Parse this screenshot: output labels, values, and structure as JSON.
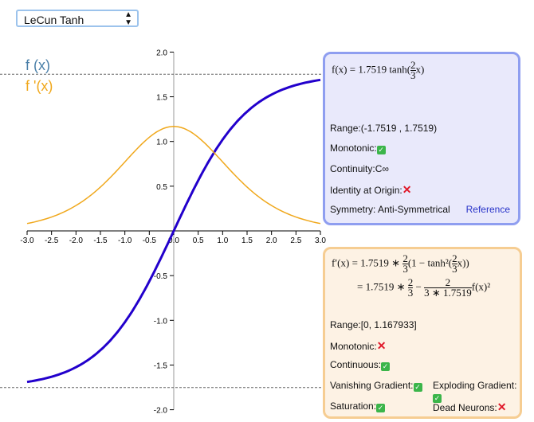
{
  "dropdown": {
    "selected": "LeCun Tanh"
  },
  "legend": {
    "f": "f (x)",
    "df": "f '(x)"
  },
  "colors": {
    "f": "#2200cc",
    "df": "#f0a81c",
    "legend_f": "#4a7fa8"
  },
  "chart_data": {
    "type": "line",
    "xlim": [
      -3,
      3
    ],
    "ylim": [
      -2,
      2
    ],
    "xticks": [
      "-3.0",
      "-2.5",
      "-2.0",
      "-1.5",
      "-1.0",
      "-0.5",
      "0.0",
      "0.5",
      "1.0",
      "1.5",
      "2.0",
      "2.5",
      "3.0"
    ],
    "yticks": [
      "2.0",
      "1.5",
      "1.0",
      "0.5",
      "-0.5",
      "-1.0",
      "-1.5",
      "-2.0"
    ],
    "series": [
      {
        "name": "f (x)",
        "function": "1.7519*tanh(2x/3)"
      },
      {
        "name": "f '(x)",
        "function": "1.7519*(2/3)*(1-tanh^2(2x/3))"
      }
    ],
    "asymptotes": [
      1.7519,
      -1.7519
    ]
  },
  "f_panel": {
    "formula_lhs": "f(x) = 1.7519 tanh(",
    "formula_num": "2",
    "formula_den": "3",
    "formula_rhs": "x)",
    "range": "Range:(-1.7519 , 1.7519)",
    "monotonic": "Monotonic:",
    "continuity": "Continuity:C∞",
    "identity": "Identity at Origin:",
    "symmetry": "Symmetry: Anti-Symmetrical",
    "reference": "Reference"
  },
  "df_panel": {
    "l1a": "f′(x) = 1.7519 ∗ ",
    "l1b": "(1 − tanh²(",
    "l1c": "x))",
    "l2a": "= 1.7519 ∗ ",
    "l2b": " − ",
    "l2num": "2",
    "l2den": "3 ∗ 1.7519",
    "l2c": "f(x)²",
    "two": "2",
    "three": "3",
    "range": "Range:[0, 1.167933]",
    "monotonic": "Monotonic:",
    "continuous": "Continuous:",
    "vanishing": "Vanishing Gradient:",
    "exploding": "Exploding Gradient:",
    "saturation": "Saturation:",
    "dead": "Dead Neurons:"
  },
  "marks": {
    "check": "✓",
    "cross": "✕"
  }
}
